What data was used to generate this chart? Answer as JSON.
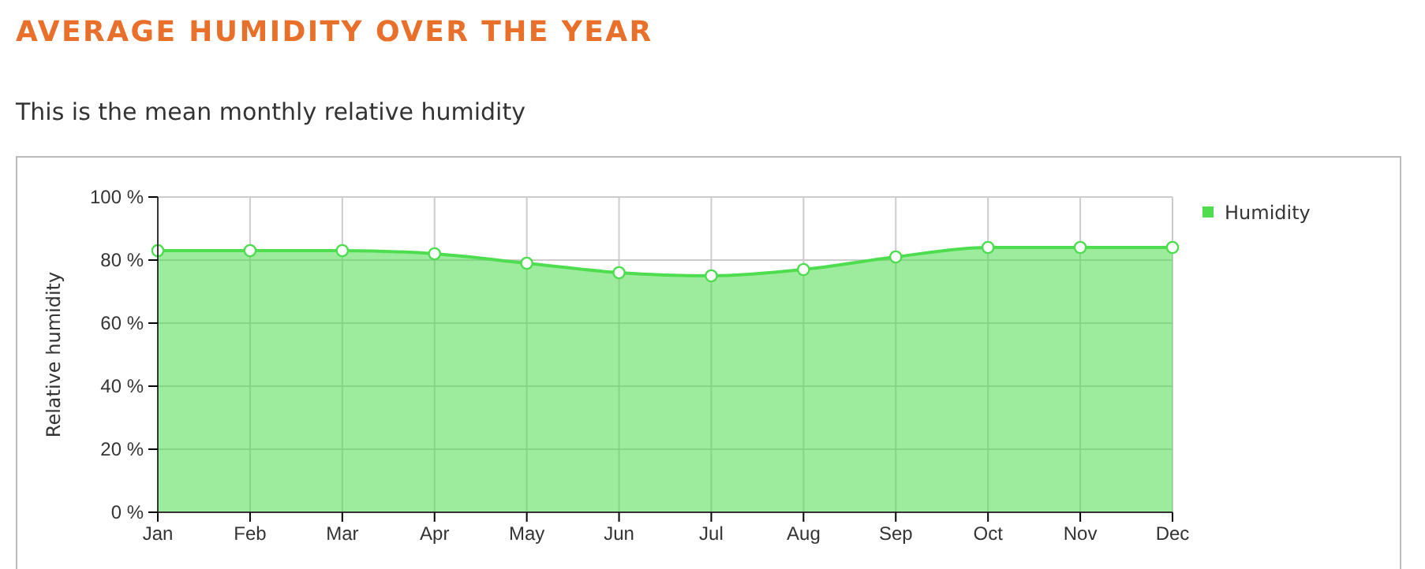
{
  "chart_data": {
    "type": "area",
    "title": "AVERAGE HUMIDITY OVER THE YEAR",
    "subtitle": "This is the mean monthly relative humidity",
    "ylabel": "Relative humidity",
    "categories": [
      "Jan",
      "Feb",
      "Mar",
      "Apr",
      "May",
      "Jun",
      "Jul",
      "Aug",
      "Sep",
      "Oct",
      "Nov",
      "Dec"
    ],
    "series": [
      {
        "name": "Humidity",
        "color": "#4ddd4f",
        "values": [
          83,
          83,
          83,
          82,
          79,
          76,
          75,
          77,
          81,
          84,
          84,
          84
        ]
      }
    ],
    "ylim": [
      0,
      100
    ],
    "yticks": [
      {
        "value": 0,
        "label": "0 %"
      },
      {
        "value": 20,
        "label": "20 %"
      },
      {
        "value": 40,
        "label": "40 %"
      },
      {
        "value": 60,
        "label": "60 %"
      },
      {
        "value": 80,
        "label": "80 %"
      },
      {
        "value": 100,
        "label": "100 %"
      }
    ],
    "grid": true,
    "legend": "top right",
    "marker": "circle"
  }
}
